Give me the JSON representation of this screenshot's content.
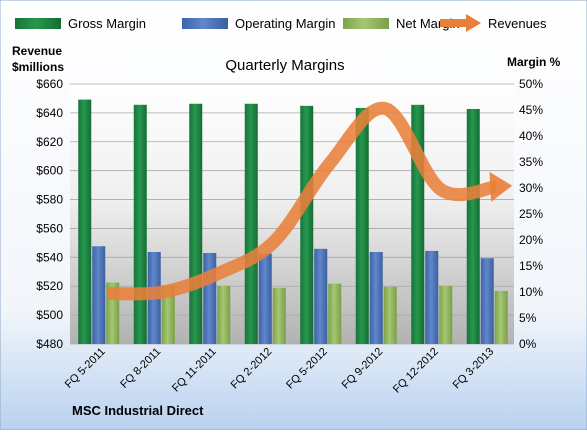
{
  "chart_data": {
    "type": "bar",
    "title": "Quarterly Margins",
    "company": "MSC Industrial Direct",
    "left_axis_label_line1": "Revenue",
    "left_axis_label_line2": "$millions",
    "right_axis_label": "Margin %",
    "categories": [
      "FQ 5-2011",
      "FQ 8-2011",
      "FQ 11-2011",
      "FQ 2-2012",
      "FQ 5-2012",
      "FQ 9-2012",
      "FQ 12-2012",
      "FQ 3-2013"
    ],
    "left_ylim": [
      480,
      660
    ],
    "left_ticks": [
      "$480",
      "$500",
      "$520",
      "$540",
      "$560",
      "$580",
      "$600",
      "$620",
      "$640",
      "$660"
    ],
    "right_ylim": [
      0,
      50
    ],
    "right_ticks": [
      "0%",
      "5%",
      "10%",
      "15%",
      "20%",
      "25%",
      "30%",
      "35%",
      "40%",
      "45%",
      "50%"
    ],
    "series": [
      {
        "name": "Gross Margin",
        "axis": "right",
        "color": "#1e7b3c",
        "values": [
          47.0,
          46.0,
          46.2,
          46.2,
          45.8,
          45.4,
          46.0,
          45.2
        ]
      },
      {
        "name": "Operating Margin",
        "axis": "right",
        "color": "#4a72b8",
        "values": [
          18.8,
          17.7,
          17.5,
          17.4,
          18.3,
          17.7,
          17.9,
          16.5
        ]
      },
      {
        "name": "Net Margin",
        "axis": "right",
        "color": "#8fb35a",
        "values": [
          11.8,
          11.3,
          11.2,
          10.8,
          11.6,
          11.0,
          11.2,
          10.2
        ]
      },
      {
        "name": "Revenues",
        "axis": "left",
        "color": "#e9803a",
        "values": [
          515,
          516,
          529,
          551,
          605,
          643,
          587,
          589
        ]
      }
    ],
    "legend_position": "top",
    "grid": true
  }
}
